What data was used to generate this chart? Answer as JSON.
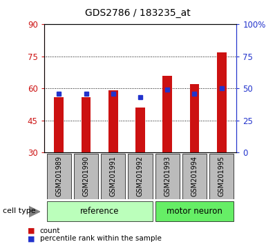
{
  "title": "GDS2786 / 183235_at",
  "categories": [
    "GSM201989",
    "GSM201990",
    "GSM201991",
    "GSM201992",
    "GSM201993",
    "GSM201994",
    "GSM201995"
  ],
  "count_values": [
    56,
    56,
    59,
    51,
    66,
    62,
    77
  ],
  "percentile_values": [
    46,
    46,
    46,
    43,
    49,
    46,
    50
  ],
  "ylim_left": [
    30,
    90
  ],
  "ylim_right": [
    0,
    100
  ],
  "yticks_left": [
    30,
    45,
    60,
    75,
    90
  ],
  "yticks_right": [
    0,
    25,
    50,
    75,
    100
  ],
  "ytick_labels_right": [
    "0",
    "25",
    "50",
    "75",
    "100%"
  ],
  "count_color": "#cc1111",
  "percentile_color": "#2233cc",
  "group_labels": [
    "reference",
    "motor neuron"
  ],
  "group_colors": [
    "#bbffbb",
    "#66ee66"
  ],
  "cell_type_label": "cell type",
  "legend_labels": [
    "count",
    "percentile rank within the sample"
  ],
  "tick_label_bg": "#bbbbbb"
}
